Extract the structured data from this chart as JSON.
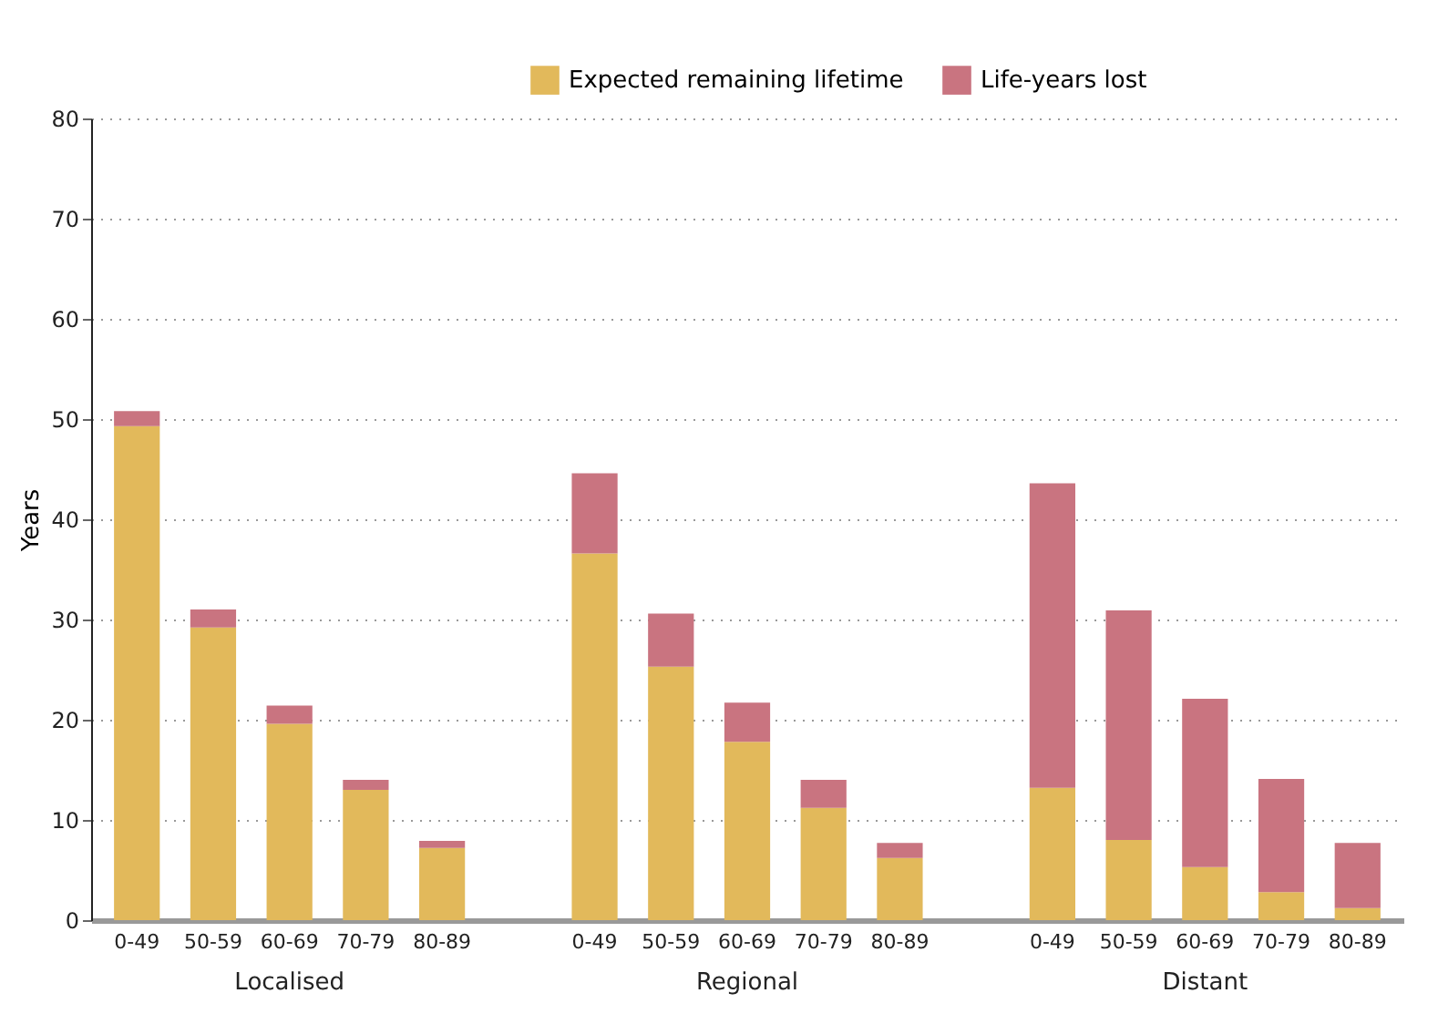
{
  "chart_data": {
    "type": "bar",
    "stacked": true,
    "ylabel": "Years",
    "categories": [
      "0-49",
      "50-59",
      "60-69",
      "70-79",
      "80-89",
      null,
      "0-49",
      "50-59",
      "60-69",
      "70-79",
      "80-89",
      null,
      "0-49",
      "50-59",
      "60-69",
      "70-79",
      "80-89"
    ],
    "series": [
      {
        "name": "Expected remaining lifetime",
        "color": "#e2b95b",
        "values": [
          49.3,
          29.2,
          19.6,
          13.0,
          7.2,
          null,
          36.6,
          25.3,
          17.8,
          11.2,
          6.2,
          null,
          13.2,
          8.0,
          5.3,
          2.8,
          1.2
        ]
      },
      {
        "name": "Life-years lost",
        "color": "#c97480",
        "values": [
          1.5,
          1.8,
          1.8,
          1.0,
          0.7,
          null,
          8.0,
          5.3,
          3.9,
          2.8,
          1.5,
          null,
          30.4,
          22.9,
          16.8,
          11.3,
          6.5
        ]
      }
    ],
    "annotations": [
      "Localised",
      "Regional",
      "Distant"
    ],
    "ylim": [
      0,
      80
    ],
    "yticks": [
      0,
      10,
      20,
      30,
      40,
      50,
      60,
      70,
      80
    ],
    "grid": "y",
    "legend": "top"
  }
}
